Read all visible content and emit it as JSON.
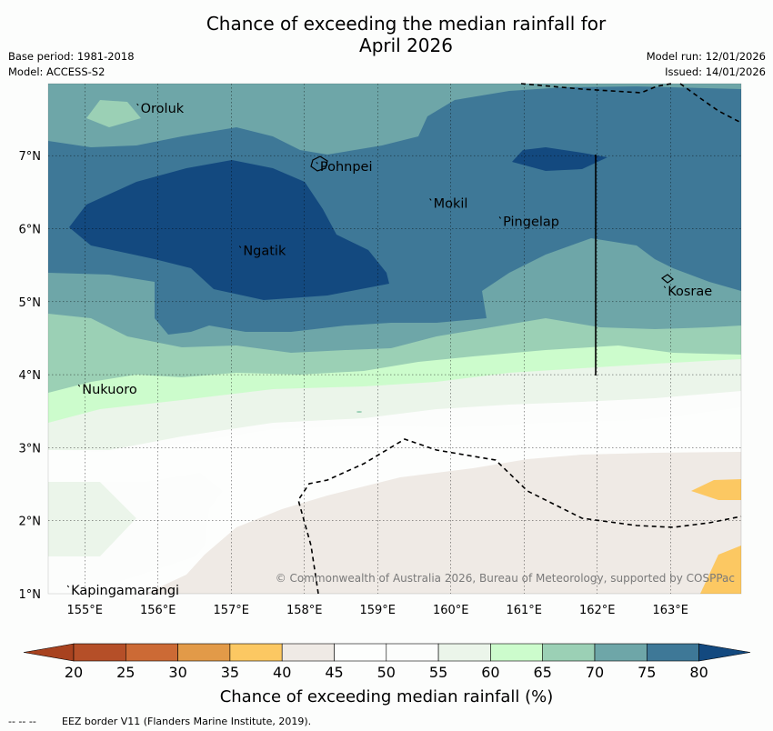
{
  "title_line1": "Chance of exceeding the median rainfall for",
  "title_line2": "April 2026",
  "base_period": "Base period: 1981-2018",
  "model": "Model: ACCESS-S2",
  "model_run": "Model run: 12/01/2026",
  "issued": "Issued: 14/01/2026",
  "places": [
    {
      "name": "Oroluk",
      "lon": 155.75,
      "lat": 7.65
    },
    {
      "name": "Pohnpei",
      "lon": 158.2,
      "lat": 6.85
    },
    {
      "name": "Mokil",
      "lon": 159.75,
      "lat": 6.35
    },
    {
      "name": "Pingelap",
      "lon": 160.7,
      "lat": 6.1
    },
    {
      "name": "Ngatik",
      "lon": 157.15,
      "lat": 5.7
    },
    {
      "name": "Kosrae",
      "lon": 162.95,
      "lat": 5.15
    },
    {
      "name": "Nukuoro",
      "lon": 154.95,
      "lat": 3.8
    },
    {
      "name": "Kapingamarangi",
      "lon": 154.8,
      "lat": 1.05
    }
  ],
  "lon_ticks": [
    "155°E",
    "156°E",
    "157°E",
    "158°E",
    "159°E",
    "160°E",
    "161°E",
    "162°E",
    "163°E"
  ],
  "lat_ticks": [
    "1°N",
    "2°N",
    "3°N",
    "4°N",
    "5°N",
    "6°N",
    "7°N"
  ],
  "colorbar": {
    "ticks": [
      "20",
      "25",
      "30",
      "35",
      "40",
      "45",
      "50",
      "55",
      "60",
      "65",
      "70",
      "75",
      "80"
    ],
    "colors": [
      "#a8421f",
      "#b54f28",
      "#cc6a35",
      "#e29a48",
      "#fcc862",
      "#efeae5",
      "#fdfefd",
      "#fcfdfc",
      "#ebf5ea",
      "#ccfccc",
      "#9bd0b5",
      "#6ea6a8",
      "#3e7897",
      "#13497f"
    ],
    "title": "Chance of exceeding median rainfall (%)"
  },
  "credit": "© Commonwealth of Australia 2026, Bureau of Meteorology, supported by COSPPac",
  "footnote_symbol": "--  --  --",
  "footnote": "EEZ border V11 (Flanders Marine Institute, 2019)."
}
